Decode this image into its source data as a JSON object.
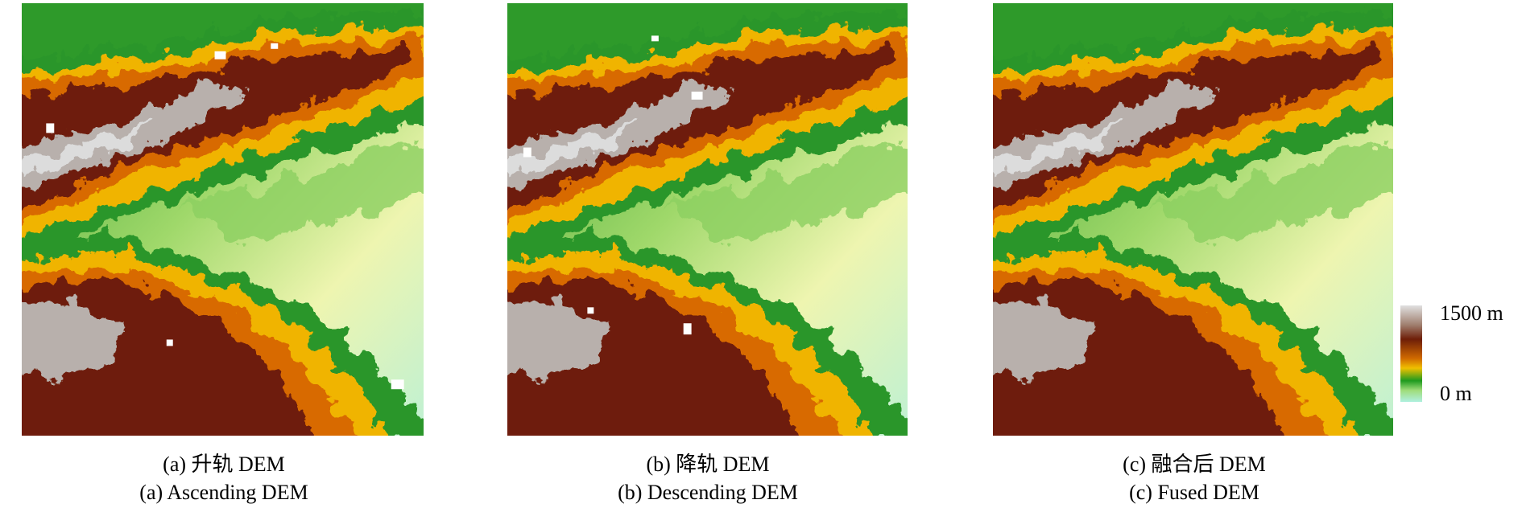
{
  "panels": [
    {
      "caption_cn": "(a) 升轨 DEM",
      "caption_en": "(a) Ascending DEM"
    },
    {
      "caption_cn": "(b) 降轨 DEM",
      "caption_en": "(b) Descending DEM"
    },
    {
      "caption_cn": "(c) 融合后 DEM",
      "caption_en": "(c) Fused DEM"
    }
  ],
  "colorbar": {
    "max_label": "1500 m",
    "min_label": "0 m"
  }
}
